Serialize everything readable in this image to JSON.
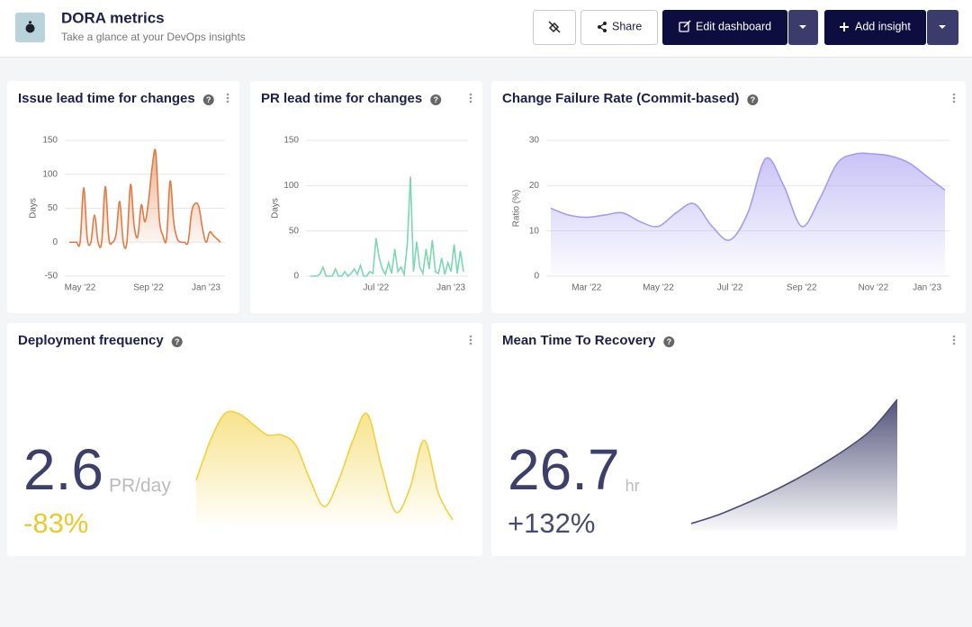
{
  "header": {
    "title": "DORA metrics",
    "subtitle": "Take a glance at your DevOps insights"
  },
  "toolbar": {
    "share": "Share",
    "edit": "Edit dashboard",
    "add": "Add insight"
  },
  "chart_data": [
    {
      "type": "area",
      "title": "Issue lead time for changes",
      "y_label": "Days",
      "curve": "smooth",
      "color": "#e07b45",
      "categories": [
        null,
        null,
        null,
        "May '22",
        null,
        null,
        null,
        null,
        null,
        null,
        null,
        null,
        null,
        null,
        null,
        null,
        null,
        null,
        null,
        null,
        null,
        null,
        "Sep '22",
        null,
        null,
        null,
        null,
        null,
        null,
        null,
        null,
        null,
        null,
        null,
        null,
        null,
        null,
        null,
        "Jan '23",
        null,
        null,
        null,
        null
      ],
      "values": [
        0,
        0,
        0,
        0,
        80,
        5,
        0,
        40,
        0,
        0,
        82,
        5,
        0,
        12,
        60,
        0,
        0,
        85,
        25,
        8,
        55,
        30,
        60,
        110,
        133,
        35,
        10,
        5,
        90,
        30,
        5,
        0,
        0,
        0,
        45,
        57,
        52,
        20,
        0,
        15,
        10,
        5,
        0
      ],
      "ylim": [
        -50,
        150
      ],
      "yticks": [
        -50,
        0,
        50,
        100,
        150
      ],
      "grid": true
    },
    {
      "type": "line",
      "title": "PR lead time for changes",
      "y_label": "Days",
      "curve": "straight",
      "color": "#7dd8b0",
      "categories": [
        null,
        null,
        null,
        null,
        null,
        null,
        null,
        null,
        null,
        null,
        null,
        null,
        null,
        null,
        null,
        null,
        null,
        null,
        null,
        null,
        null,
        "Jul '22",
        null,
        null,
        null,
        null,
        null,
        null,
        null,
        null,
        null,
        null,
        null,
        null,
        null,
        null,
        null,
        null,
        null,
        null,
        null,
        null,
        null,
        null,
        null,
        "Jan '23",
        null,
        null,
        null,
        null
      ],
      "values": [
        0,
        0,
        0,
        2,
        10,
        0,
        0,
        0,
        8,
        0,
        0,
        5,
        0,
        3,
        8,
        2,
        12,
        0,
        0,
        5,
        3,
        42,
        20,
        8,
        2,
        15,
        3,
        30,
        5,
        10,
        2,
        35,
        110,
        5,
        38,
        10,
        3,
        30,
        8,
        40,
        5,
        3,
        20,
        2,
        15,
        5,
        35,
        3,
        28,
        5
      ],
      "ylim": [
        0,
        150
      ],
      "yticks": [
        0,
        50,
        100,
        150
      ],
      "grid": true
    },
    {
      "type": "area",
      "title": "Change Failure Rate (Commit-based)",
      "y_label": "Ratio (%)",
      "curve": "smooth",
      "color": "#a49cf0",
      "categories": [
        null,
        null,
        "Mar '22",
        null,
        null,
        null,
        "May '22",
        null,
        null,
        null,
        "Jul '22",
        null,
        null,
        null,
        "Sep '22",
        null,
        null,
        null,
        "Nov '22",
        null,
        null,
        "Jan '23",
        null
      ],
      "values": [
        15,
        13.5,
        13,
        13.5,
        14,
        12,
        11,
        14,
        16,
        11,
        8,
        14,
        26,
        20,
        11,
        17,
        25,
        27,
        27,
        26.5,
        25,
        22,
        19
      ],
      "ylim": [
        0,
        30
      ],
      "yticks": [
        0,
        10,
        20,
        30
      ],
      "grid": true
    },
    {
      "type": "area",
      "title": "Deployment frequency",
      "curve": "smooth",
      "color": "#f2d13e",
      "kpi": {
        "value": 2.6,
        "unit": "PR/day",
        "change": "-83%"
      },
      "values": [
        1.5,
        3.0,
        4.0,
        4.0,
        3.6,
        3.2,
        3.2,
        2.8,
        1.5,
        0.5,
        1.5,
        3.0,
        4.0,
        2.0,
        0.3,
        1.2,
        3.0,
        1.0,
        0.0
      ]
    },
    {
      "type": "area",
      "title": "Mean Time To Recovery",
      "curve": "smooth",
      "color": "#4a4a75",
      "kpi": {
        "value": 26.7,
        "unit": "hr",
        "change": "+132%"
      },
      "values": [
        11.5,
        12.5,
        13.8,
        15.2,
        16.8,
        18.6,
        20.6,
        23,
        26.7
      ]
    }
  ]
}
